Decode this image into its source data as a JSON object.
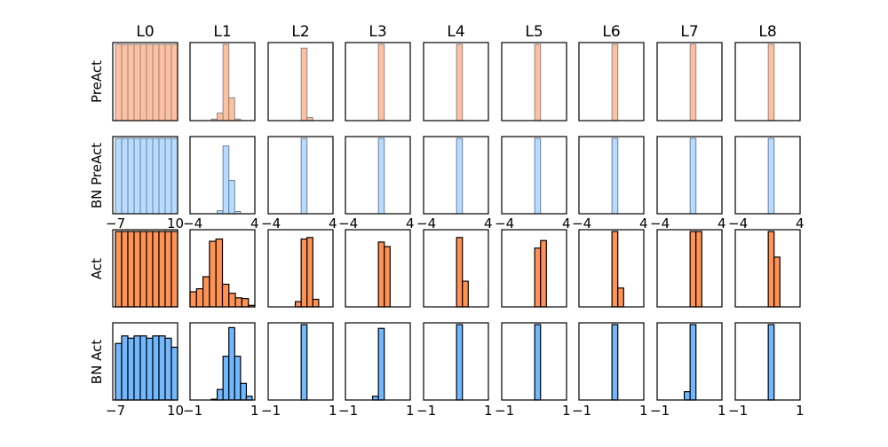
{
  "chart_data": {
    "type": "bar",
    "title": "",
    "layout": {
      "rows": 4,
      "cols": 9,
      "grid": false,
      "legend": "none"
    },
    "columns": [
      "L0",
      "L1",
      "L2",
      "L3",
      "L4",
      "L5",
      "L6",
      "L7",
      "L8"
    ],
    "rows": [
      {
        "name": "PreAct",
        "color": "#ffc0a0",
        "edge": "#888888",
        "xlim": [
          -4,
          4
        ],
        "xticks_shown": false
      },
      {
        "name": "BN PreAct",
        "color": "#b8dcff",
        "edge": "#6a7f99",
        "xlim": [
          -4,
          4
        ],
        "xticks": [
          "-4",
          "4"
        ],
        "xticks_L0": [
          "-7",
          "10"
        ]
      },
      {
        "name": "Act",
        "color": "#ff9255",
        "edge": "#000000",
        "xlim": [
          -4,
          4
        ],
        "xticks_L0": [
          "-7",
          "10"
        ],
        "xticks": [
          "-4",
          "4"
        ]
      },
      {
        "name": "BN Act",
        "color": "#72b8ff",
        "edge": "#000000",
        "xlim": [
          -1,
          1
        ],
        "xticks_L0": [
          "-7",
          "10"
        ],
        "xticks": [
          "-1",
          "1"
        ]
      }
    ],
    "histograms": {
      "PreAct": [
        [
          1,
          1,
          1,
          1,
          1,
          1,
          1,
          1,
          1,
          1
        ],
        [
          0,
          0,
          0.02,
          0.1,
          1.0,
          0.3,
          0.02,
          0,
          0,
          0
        ],
        [
          0,
          0,
          0,
          0,
          0.95,
          0.04,
          0,
          0,
          0,
          0
        ],
        [
          0,
          0,
          0,
          0,
          1.0,
          0,
          0,
          0,
          0,
          0
        ],
        [
          0,
          0,
          0,
          0,
          1.0,
          0,
          0,
          0,
          0,
          0
        ],
        [
          0,
          0,
          0,
          0,
          1.0,
          0,
          0,
          0,
          0,
          0
        ],
        [
          0,
          0,
          0,
          0,
          1.0,
          0,
          0,
          0,
          0,
          0
        ],
        [
          0,
          0,
          0,
          0,
          1.0,
          0,
          0,
          0,
          0,
          0
        ],
        [
          0,
          0,
          0,
          0,
          1.0,
          0,
          0,
          0,
          0,
          0
        ]
      ],
      "BN PreAct": [
        [
          1,
          1,
          1,
          1,
          1,
          1,
          1,
          1,
          1,
          1
        ],
        [
          0,
          0,
          0,
          0.04,
          0.9,
          0.44,
          0.03,
          0,
          0,
          0
        ],
        [
          0,
          0,
          0,
          0,
          1.0,
          0,
          0,
          0,
          0,
          0
        ],
        [
          0,
          0,
          0,
          0,
          1.0,
          0,
          0,
          0,
          0,
          0
        ],
        [
          0,
          0,
          0,
          0,
          1.0,
          0,
          0,
          0,
          0,
          0
        ],
        [
          0,
          0,
          0,
          0,
          1.0,
          0,
          0,
          0,
          0,
          0
        ],
        [
          0,
          0,
          0,
          0,
          1.0,
          0,
          0,
          0,
          0,
          0
        ],
        [
          0,
          0,
          0,
          0,
          1.0,
          0,
          0,
          0,
          0,
          0
        ],
        [
          0,
          0,
          0,
          0,
          1.0,
          0,
          0,
          0,
          0,
          0
        ]
      ],
      "Act": [
        [
          1,
          1,
          1,
          1,
          1,
          1,
          1,
          1,
          1,
          1
        ],
        [
          0.2,
          0.24,
          0.4,
          0.87,
          0.9,
          0.3,
          0.18,
          0.12,
          0.11,
          0.02
        ],
        [
          0,
          0,
          0,
          0.07,
          0.9,
          0.92,
          0.1,
          0,
          0,
          0
        ],
        [
          0,
          0,
          0,
          0,
          0.86,
          0.8,
          0,
          0,
          0,
          0
        ],
        [
          0,
          0,
          0,
          0,
          0.92,
          0.34,
          0,
          0,
          0,
          0
        ],
        [
          0,
          0,
          0,
          0,
          0.78,
          0.88,
          0,
          0,
          0,
          0
        ],
        [
          0,
          0,
          0,
          0,
          1.0,
          0.25,
          0,
          0,
          0,
          0
        ],
        [
          0,
          0,
          0,
          0,
          1.0,
          1.0,
          0,
          0,
          0,
          0
        ],
        [
          0,
          0,
          0,
          0,
          1.0,
          0.66,
          0,
          0,
          0,
          0
        ]
      ],
      "BN Act": [
        [
          0.75,
          0.85,
          0.82,
          0.85,
          0.85,
          0.82,
          0.85,
          0.85,
          0.82,
          0.7
        ],
        [
          0,
          0,
          0.01,
          0.14,
          0.58,
          0.96,
          0.58,
          0.22,
          0.05,
          0
        ],
        [
          0,
          0,
          0,
          0,
          1.0,
          0,
          0,
          0,
          0,
          0
        ],
        [
          0,
          0,
          0,
          0.05,
          0.95,
          0,
          0,
          0,
          0,
          0
        ],
        [
          0,
          0,
          0,
          0,
          1.0,
          0,
          0,
          0,
          0,
          0
        ],
        [
          0,
          0,
          0,
          0,
          1.0,
          0,
          0,
          0,
          0,
          0
        ],
        [
          0,
          0,
          0,
          0,
          1.0,
          0,
          0,
          0,
          0,
          0
        ],
        [
          0,
          0,
          0,
          0.11,
          1.0,
          0,
          0,
          0,
          0,
          0
        ],
        [
          0,
          0,
          0,
          0,
          1.0,
          0,
          0,
          0,
          0,
          0
        ]
      ]
    }
  },
  "labels": {
    "columns": [
      "L0",
      "L1",
      "L2",
      "L3",
      "L4",
      "L5",
      "L6",
      "L7",
      "L8"
    ],
    "rows": [
      "PreAct",
      "BN PreAct",
      "Act",
      "BN Act"
    ],
    "ticks_row2": [
      "−7",
      "10",
      "−4",
      "4",
      "−4",
      "4",
      "−4",
      "4",
      "−4",
      "4",
      "−4",
      "4",
      "−4",
      "4",
      "−4",
      "4",
      "−4",
      "4"
    ],
    "ticks_row4": [
      "−7",
      "10",
      "−1",
      "1",
      "−1",
      "1",
      "−1",
      "1",
      "−1",
      "1",
      "−1",
      "1",
      "−1",
      "1",
      "−1",
      "1",
      "−1",
      "1"
    ]
  }
}
